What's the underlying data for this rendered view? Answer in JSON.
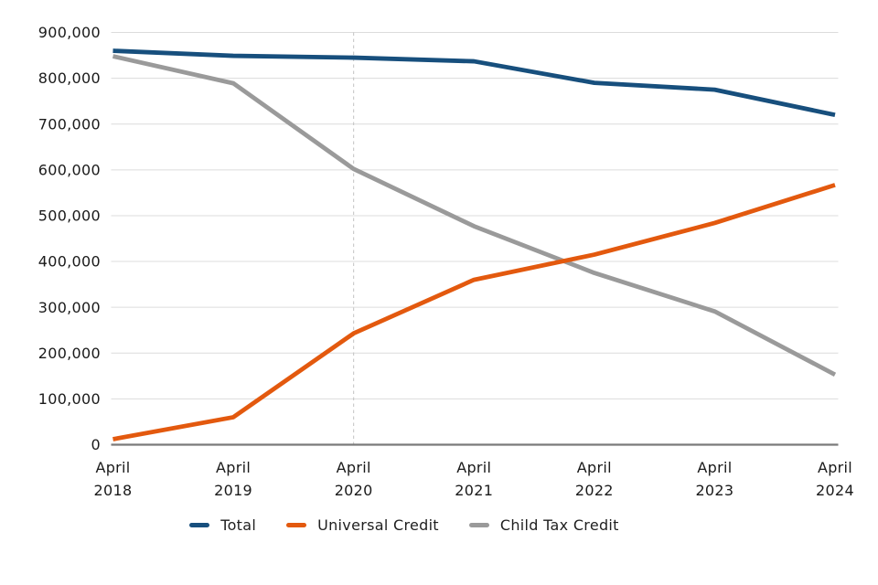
{
  "chart_data": {
    "type": "line",
    "categories": [
      "April 2018",
      "April 2019",
      "April 2020",
      "April 2021",
      "April 2022",
      "April 2023",
      "April 2024"
    ],
    "series": [
      {
        "name": "Total",
        "color": "#174F7D",
        "values": [
          860000,
          849000,
          845000,
          837000,
          790000,
          775000,
          720000
        ]
      },
      {
        "name": "Universal Credit",
        "color": "#E3590E",
        "values": [
          12000,
          60000,
          243000,
          360000,
          415000,
          484000,
          567000
        ]
      },
      {
        "name": "Child Tax Credit",
        "color": "#9A9A9A",
        "values": [
          848000,
          789000,
          602000,
          477000,
          375000,
          291000,
          153000
        ]
      }
    ],
    "ylim": [
      0,
      900000
    ],
    "ytick_step": 100000,
    "ytick_labels": [
      "0",
      "100,000",
      "200,000",
      "300,000",
      "400,000",
      "500,000",
      "600,000",
      "700,000",
      "800,000",
      "900,000"
    ],
    "grid": "horizontal",
    "legend_position": "bottom",
    "annotations": {
      "vline": {
        "category": "April 2020",
        "style": "dashed"
      }
    },
    "colors": {
      "gridline": "#DCDCDC",
      "axis_line": "#7A7A7A",
      "vline": "#C2C2C2",
      "tick_text": "#1A1A1A"
    }
  }
}
